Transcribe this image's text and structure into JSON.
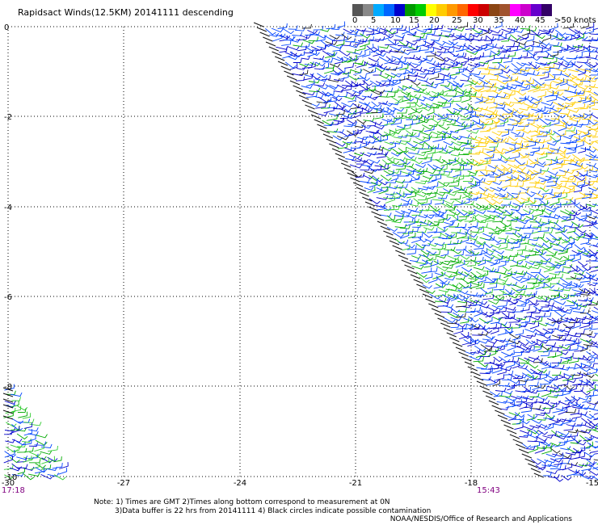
{
  "title": "Rapidsact Winds(12.5KM) 20141111 descending",
  "legend": {
    "colors": [
      "#555555",
      "#888888",
      "#00aaff",
      "#0066ff",
      "#0000cc",
      "#009900",
      "#00cc00",
      "#ffff00",
      "#ffcc00",
      "#ff9900",
      "#ff6600",
      "#ff0000",
      "#cc0000",
      "#8b4513",
      "#a0522d",
      "#ff00ff",
      "#cc00cc",
      "#6600cc",
      "#330066"
    ],
    "labels": [
      {
        "text": "0"
      },
      {
        "text": "5"
      },
      {
        "text": "10"
      },
      {
        "text": "15"
      },
      {
        "text": "20"
      },
      {
        "text": "25"
      },
      {
        "text": "30"
      },
      {
        "text": "35"
      },
      {
        "text": "40"
      },
      {
        "text": "45"
      },
      {
        "text": ">50 knots"
      }
    ]
  },
  "axes": {
    "lat_labels": [
      "0",
      "-2",
      "-4",
      "-6",
      "-8",
      "-10"
    ],
    "lon_labels": [
      "-30",
      "-27",
      "-24",
      "-21",
      "-18",
      "-15"
    ]
  },
  "times": {
    "left": "17:18",
    "right": "15:43"
  },
  "notes": {
    "line1": "Note: 1) Times are GMT 2)Times along bottom correspond to measurement at 0N",
    "line2": "3)Data buffer is 22 hrs from 20141111 4) Black circles indicate possible contamination"
  },
  "credit": "NOAA/NESDIS/Office of Research and Applications",
  "colors": {
    "grid": "#000000",
    "time_label": "#800080",
    "wind_colors": [
      "#0000cc",
      "#0044ff",
      "#00aa00",
      "#33cc33",
      "#ffcc00",
      "#1a1a1a"
    ]
  }
}
